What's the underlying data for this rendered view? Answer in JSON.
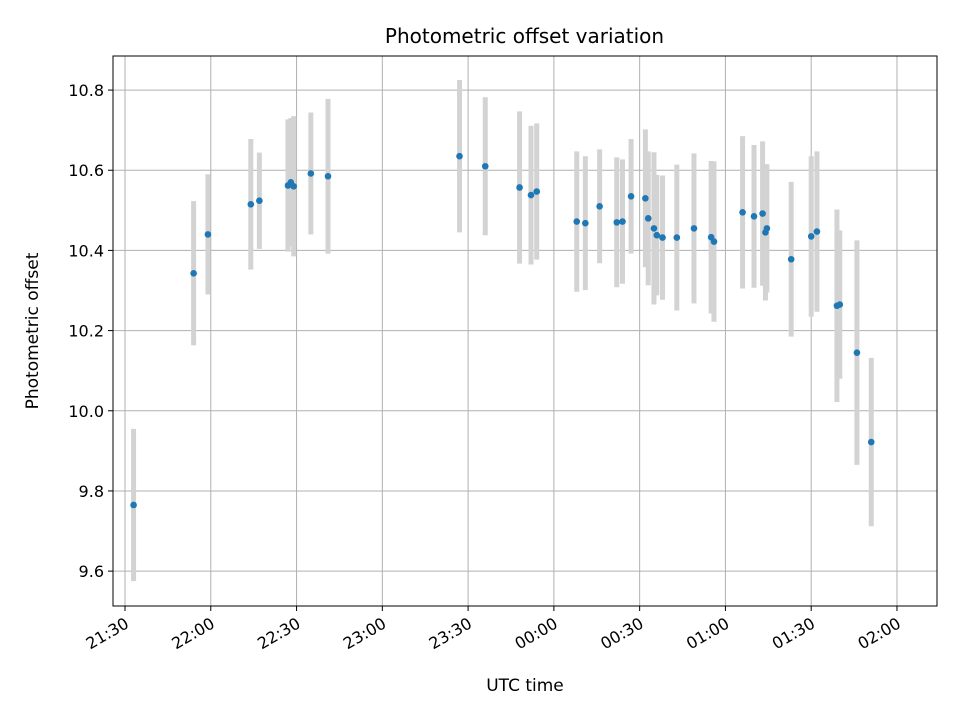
{
  "chart_data": {
    "type": "scatter",
    "title": "Photometric offset variation",
    "xlabel": "UTC time",
    "ylabel": "Photometric offset",
    "x_ticks": [
      "21:30",
      "22:00",
      "22:30",
      "23:00",
      "23:30",
      "00:00",
      "00:30",
      "01:00",
      "01:30",
      "02:00"
    ],
    "y_ticks": [
      "9.6",
      "9.8",
      "10.0",
      "10.2",
      "10.4",
      "10.6",
      "10.8"
    ],
    "xlim": [
      -34.2,
      254.0
    ],
    "ylim": [
      9.513,
      10.885
    ],
    "grid": true,
    "colors": {
      "point": "#1f77b4",
      "errorbar": "#d3d3d3",
      "grid": "#b0b0b0",
      "axis": "#000000"
    },
    "series": [
      {
        "points": [
          {
            "x": -27,
            "y": 9.765,
            "yerr": 0.19
          },
          {
            "x": -6,
            "y": 10.343,
            "yerr": 0.18
          },
          {
            "x": -1,
            "y": 10.44,
            "yerr": 0.15
          },
          {
            "x": 14,
            "y": 10.515,
            "yerr": 0.163
          },
          {
            "x": 17,
            "y": 10.524,
            "yerr": 0.12
          },
          {
            "x": 27,
            "y": 10.562,
            "yerr": 0.165
          },
          {
            "x": 28,
            "y": 10.57,
            "yerr": 0.16
          },
          {
            "x": 29,
            "y": 10.56,
            "yerr": 0.175
          },
          {
            "x": 35,
            "y": 10.592,
            "yerr": 0.152
          },
          {
            "x": 41,
            "y": 10.585,
            "yerr": 0.193
          },
          {
            "x": 87,
            "y": 10.635,
            "yerr": 0.19
          },
          {
            "x": 96,
            "y": 10.61,
            "yerr": 0.172
          },
          {
            "x": 108,
            "y": 10.557,
            "yerr": 0.19
          },
          {
            "x": 112,
            "y": 10.538,
            "yerr": 0.173
          },
          {
            "x": 114,
            "y": 10.547,
            "yerr": 0.17
          },
          {
            "x": 128,
            "y": 10.472,
            "yerr": 0.175
          },
          {
            "x": 131,
            "y": 10.468,
            "yerr": 0.167
          },
          {
            "x": 136,
            "y": 10.51,
            "yerr": 0.142
          },
          {
            "x": 142,
            "y": 10.47,
            "yerr": 0.162
          },
          {
            "x": 144,
            "y": 10.472,
            "yerr": 0.155
          },
          {
            "x": 147,
            "y": 10.535,
            "yerr": 0.143
          },
          {
            "x": 152,
            "y": 10.53,
            "yerr": 0.172
          },
          {
            "x": 153,
            "y": 10.48,
            "yerr": 0.167
          },
          {
            "x": 155,
            "y": 10.455,
            "yerr": 0.19
          },
          {
            "x": 156,
            "y": 10.438,
            "yerr": 0.15
          },
          {
            "x": 158,
            "y": 10.432,
            "yerr": 0.155
          },
          {
            "x": 163,
            "y": 10.432,
            "yerr": 0.182
          },
          {
            "x": 169,
            "y": 10.455,
            "yerr": 0.187
          },
          {
            "x": 175,
            "y": 10.433,
            "yerr": 0.19
          },
          {
            "x": 176,
            "y": 10.422,
            "yerr": 0.2
          },
          {
            "x": 186,
            "y": 10.495,
            "yerr": 0.19
          },
          {
            "x": 190,
            "y": 10.485,
            "yerr": 0.178
          },
          {
            "x": 193,
            "y": 10.492,
            "yerr": 0.18
          },
          {
            "x": 194,
            "y": 10.445,
            "yerr": 0.17
          },
          {
            "x": 194.5,
            "y": 10.455,
            "yerr": 0.16
          },
          {
            "x": 203,
            "y": 10.378,
            "yerr": 0.193
          },
          {
            "x": 210,
            "y": 10.435,
            "yerr": 0.2
          },
          {
            "x": 212,
            "y": 10.447,
            "yerr": 0.2
          },
          {
            "x": 219,
            "y": 10.262,
            "yerr": 0.24
          },
          {
            "x": 220,
            "y": 10.265,
            "yerr": 0.185
          },
          {
            "x": 226,
            "y": 10.145,
            "yerr": 0.28
          },
          {
            "x": 231,
            "y": 9.922,
            "yerr": 0.21
          }
        ]
      }
    ]
  }
}
